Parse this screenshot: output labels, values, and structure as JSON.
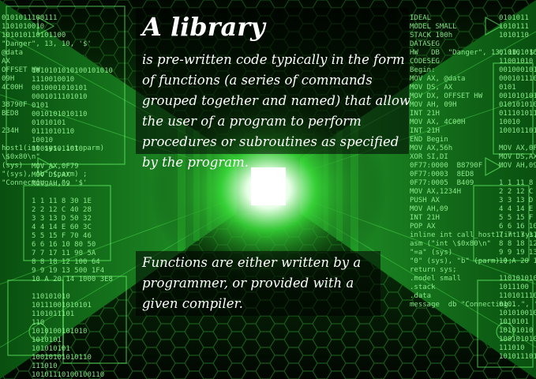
{
  "heading": "A library",
  "paragraph_1": "is pre-written code typically in the form of functions (a series of commands grouped together and named) that allow the user of a program to perform procedures or subroutines as specified by the program.",
  "paragraph_2": "Functions are either written by a programmer, or provided with a given compiler.",
  "code_left": "0101011100111\n1101010010\n101010110101100\n\"Danger\", 13, 10, '$'\n@data\nAX\nOFFSET HW\n09H\n4C00H\n\n38790F\nBED8\n\n234H\n\nhost1(int sys, int parm)\n\\$0x80\\n\"\n(sys)\n\"(sys), \"b\" (parm) ;\n\"Connecting...\", '$'",
  "code_right": "IDEAL\nMODEL SMALL\nSTACK 100h\nDATASEG\nHW   DB  \"Danger\", 13, 10, '$'\nCODESEG\nBegin:\nMOV AX, @data\nMOV DS, AX\nMOV DX, OFFSET HW\nMOV AH, 09H\nINT 21H\nMOV AX, 4C00H\nINT 21H\nEND Begin\nMOV AX,56h\nXOR SI,DI\n0F77:0000  B8790F\n0F77:0003  8ED8\n0F77:0005  B409\nMOV AX,1234H\nPUSH AX\nMOV AH,09\nINT 21H\nPOP AX\ninline int call_host1(int sys, int parm)\nasm (\"int \\$0x80\\n\"\n\"=a\" (sys)\n\"0\" (sys), \"b\" (parm) );\nreturn sys;\n.model small\n.stack\n.data\nmessage  db \"Connecting...\", '$'",
  "code_mid_left": "1010101010100101010\n1110010010\n0010001010101\n0001011101010\n0101\n0010101010110\n01010101\n0111010110\n10010\n100101011010\n\nMOV AX,0F79\nMOV DS,AX\nMOV AH,09\n\n1 1 11 8 30 1E\n2 2 12 C 40 28\n3 3 13 D 50 32\n4 4 14 E 60 3C\n5 5 15 F 70 46\n6 6 16 10 80 50\n7 7 17 11 90 5A\n8 8 18 12 100 64\n9 9 19 13 500 1F4\n10 A 20 14 1000 3E8\n\n110101010\n10111001010101\n1101011101\n110\n1010100101010\n1010101\n101010101\n10010101010110\n111010\n10101110100100110",
  "code_right_bin": "0101011\n1010111\n1010110\n\n0101010101010\n11001010\n00100010101\n0001011101\n0101\n00101010101\n0101010101\n01110101110\n10010\n10010110101\n\nMOV AX,0F79\nMOV DS,AX\nMOV AH,09\n\n1 1 11 8 30 1E\n2 2 12 C 40 28\n3 3 13 D 50 32\n4 4 14 E 60 3C\n5 5 15 F 70 46\n6 6 16 10 80 50\n7 7 17 11 90 5A\n8 8 18 12 100 64\n9 9 19 13 500 1F4\n10 A 20 14 1000 3E8\n\n110101010\n1011100\n1101011101\n0101\n1010100101\n1010101\n10101010\n100101010\n111010\n1010111010"
}
